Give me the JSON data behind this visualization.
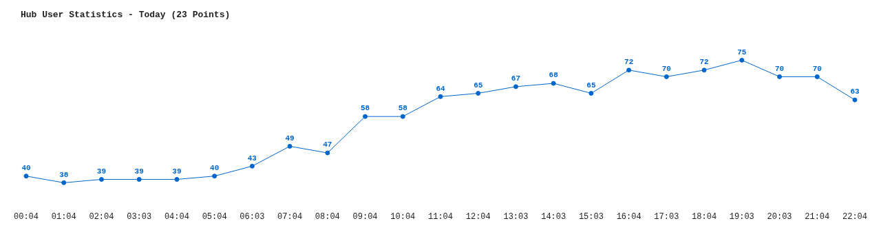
{
  "chart_data": {
    "type": "line",
    "title": "Hub User Statistics - Today (23 Points)",
    "categories": [
      "00:04",
      "01:04",
      "02:04",
      "03:03",
      "04:04",
      "05:04",
      "06:03",
      "07:04",
      "08:04",
      "09:04",
      "10:04",
      "11:04",
      "12:04",
      "13:03",
      "14:03",
      "15:03",
      "16:04",
      "17:03",
      "18:04",
      "19:03",
      "20:03",
      "21:04",
      "22:04"
    ],
    "series": [
      {
        "color": "#0066cc",
        "values": [
          40,
          38,
          39,
          39,
          39,
          40,
          43,
          49,
          47,
          58,
          58,
          64,
          65,
          67,
          68,
          65,
          72,
          70,
          72,
          75,
          70,
          70,
          63
        ]
      }
    ],
    "tick_labels": "x",
    "data_labels": true,
    "grid": false,
    "legend": false,
    "marker": "circle",
    "line_style": "solid"
  }
}
